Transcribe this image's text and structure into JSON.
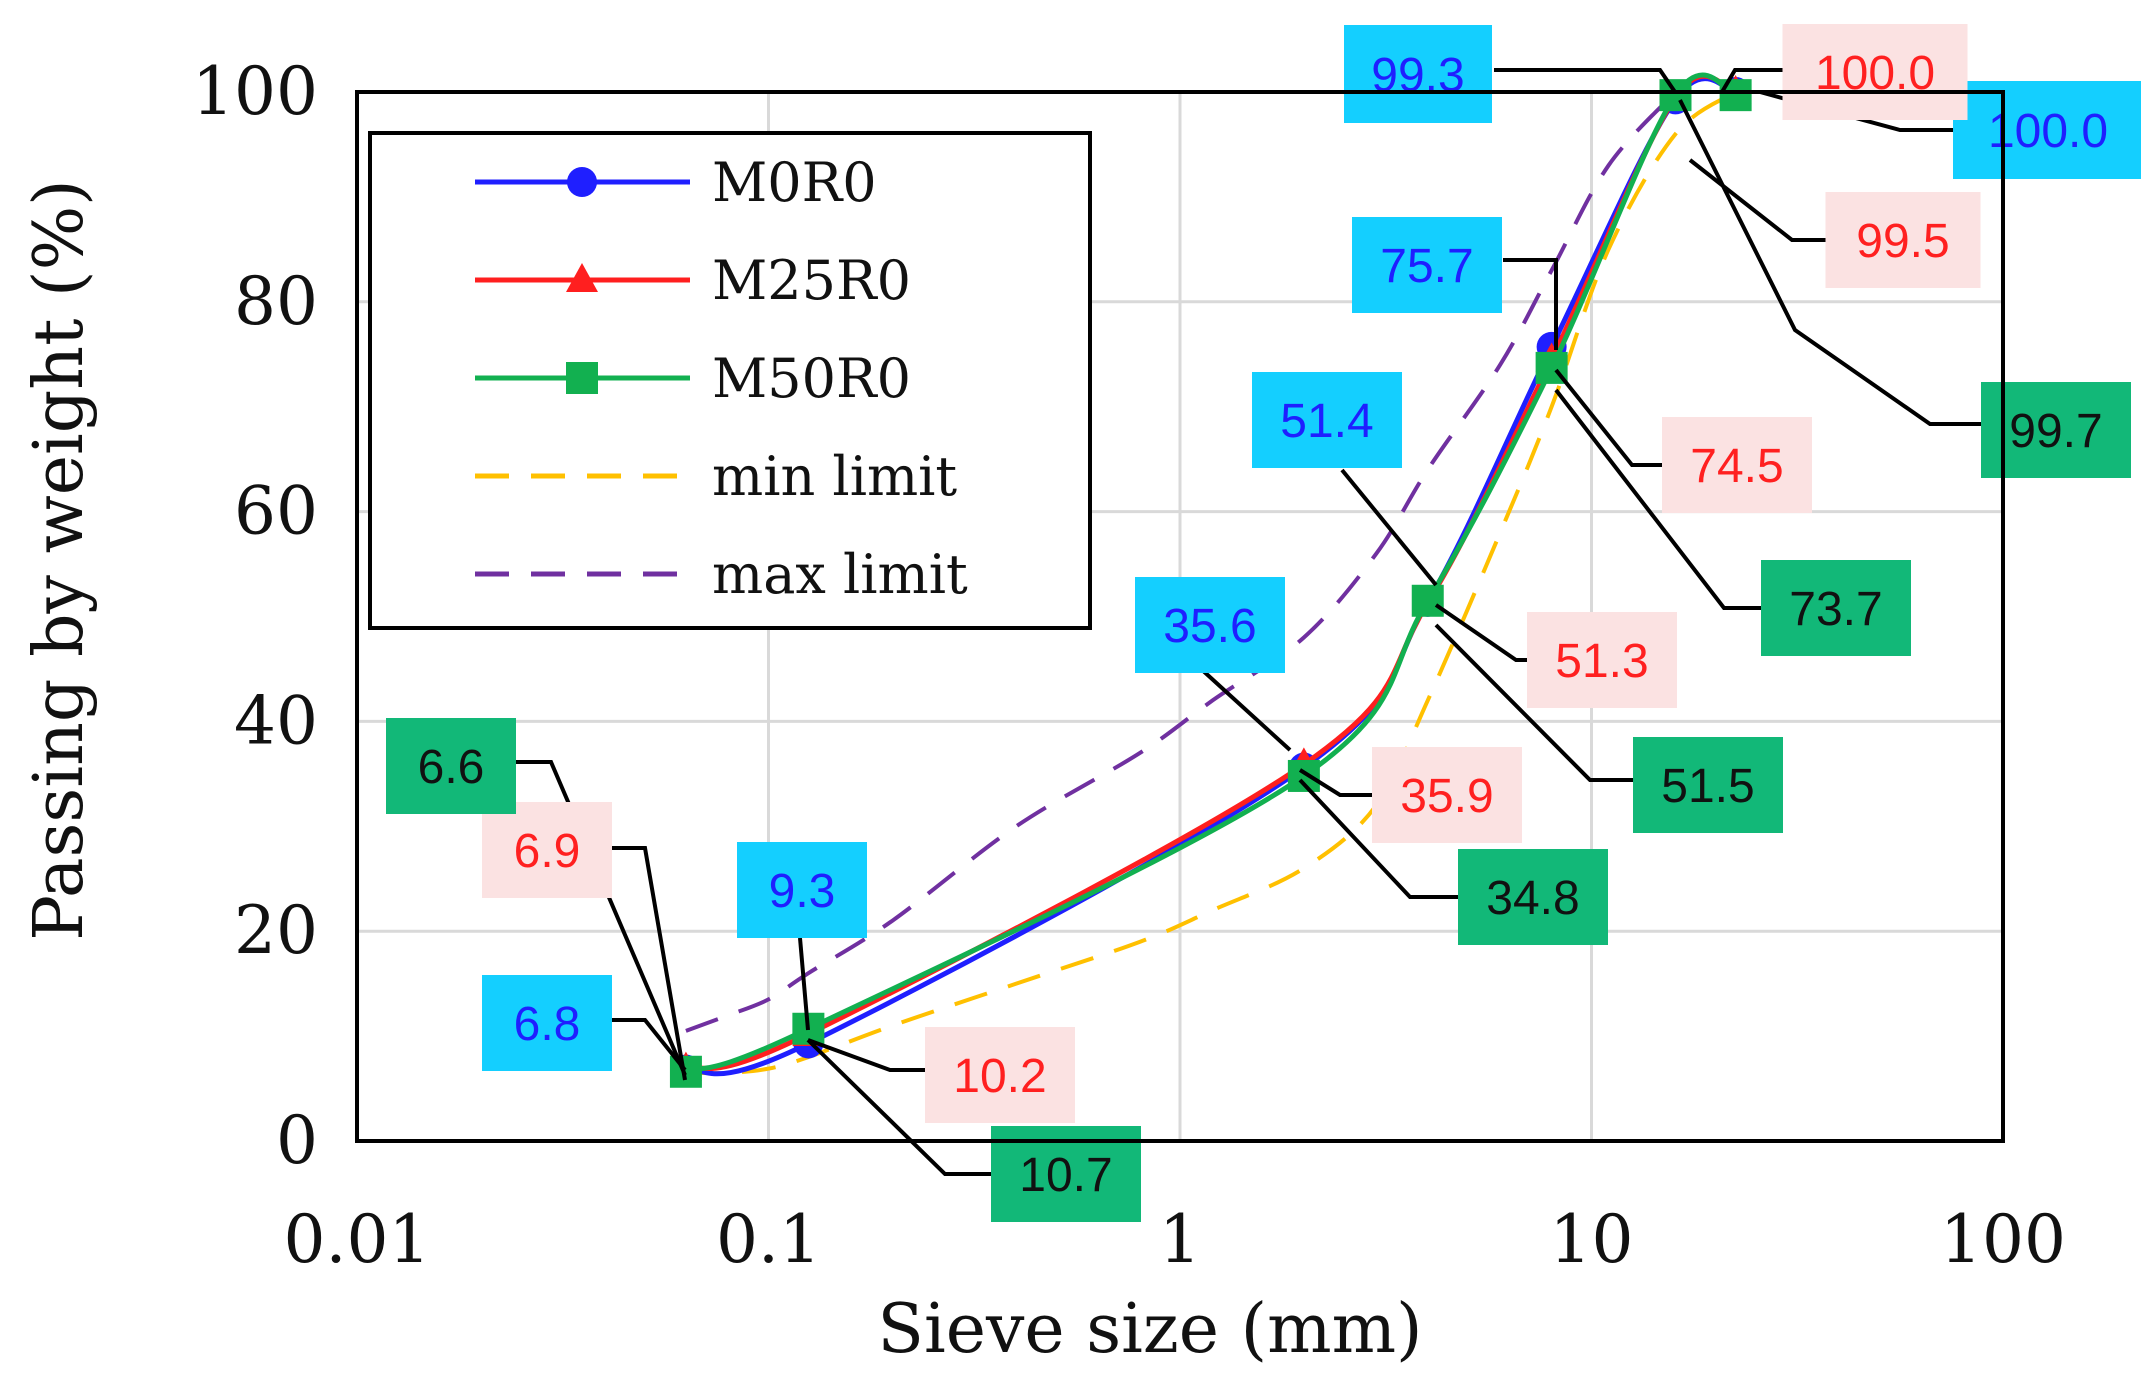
{
  "chart_data": {
    "type": "line",
    "title": "",
    "xlabel": "Sieve size (mm)",
    "ylabel": "Passing by weight (%)",
    "xscale": "log",
    "xlim": [
      0.01,
      100
    ],
    "ylim": [
      0,
      100
    ],
    "x_ticks": [
      0.01,
      0.1,
      1,
      10,
      100
    ],
    "x_tick_labels": [
      "0.01",
      "0.1",
      "1",
      "10",
      "100"
    ],
    "y_ticks": [
      0,
      20,
      40,
      60,
      80,
      100
    ],
    "y_tick_labels": [
      "0",
      "20",
      "40",
      "60",
      "80",
      "100"
    ],
    "grid": true,
    "legend_position": "top-left",
    "x": [
      0.063,
      0.125,
      2,
      4,
      8,
      16,
      22.4
    ],
    "series": [
      {
        "name": "M0R0",
        "color": "#1f1fff",
        "marker": "circle",
        "values": [
          6.8,
          9.3,
          35.6,
          51.4,
          75.7,
          99.3,
          100.0
        ]
      },
      {
        "name": "M25R0",
        "color": "#ff1f1f",
        "marker": "triangle",
        "values": [
          6.9,
          10.2,
          35.9,
          51.3,
          74.5,
          99.5,
          100.0
        ]
      },
      {
        "name": "M50R0",
        "color": "#12b050",
        "marker": "square",
        "values": [
          6.6,
          10.7,
          34.8,
          51.5,
          73.7,
          99.7,
          99.7
        ]
      },
      {
        "name": "min limit",
        "color": "#ffc000",
        "dashed": true,
        "x": [
          0.063,
          0.08,
          0.1,
          0.125,
          0.2,
          0.4,
          0.8,
          1.2,
          2,
          3,
          4,
          6,
          8,
          11,
          16,
          22.4
        ],
        "values": [
          6.5,
          6.5,
          6.9,
          8,
          11,
          15,
          19,
          22,
          26,
          32,
          42,
          58,
          70,
          85,
          96,
          100
        ]
      },
      {
        "name": "max limit",
        "color": "#7030a0",
        "dashed": true,
        "x": [
          0.063,
          0.08,
          0.1,
          0.125,
          0.2,
          0.4,
          0.8,
          1.2,
          2,
          3,
          4,
          6,
          8,
          11,
          16
        ],
        "values": [
          10.5,
          12,
          13.5,
          16,
          21,
          30,
          37,
          42,
          48,
          56,
          64,
          74,
          83,
          93,
          100
        ]
      }
    ],
    "data_labels": [
      {
        "text": "99.3",
        "series": "M0R0",
        "color": "#1f1fff",
        "bg": "#14cfff"
      },
      {
        "text": "100.0",
        "series": "M0R0",
        "color": "#1f1fff",
        "bg": "#14cfff"
      },
      {
        "text": "75.7",
        "series": "M0R0",
        "color": "#1f1fff",
        "bg": "#14cfff"
      },
      {
        "text": "51.4",
        "series": "M0R0",
        "color": "#1f1fff",
        "bg": "#14cfff"
      },
      {
        "text": "35.6",
        "series": "M0R0",
        "color": "#1f1fff",
        "bg": "#14cfff"
      },
      {
        "text": "9.3",
        "series": "M0R0",
        "color": "#1f1fff",
        "bg": "#14cfff"
      },
      {
        "text": "6.8",
        "series": "M0R0",
        "color": "#1f1fff",
        "bg": "#14cfff"
      },
      {
        "text": "100.0",
        "series": "M25R0",
        "color": "#ff2020",
        "bg": "#fbe2e2"
      },
      {
        "text": "99.5",
        "series": "M25R0",
        "color": "#ff2020",
        "bg": "#fbe2e2"
      },
      {
        "text": "74.5",
        "series": "M25R0",
        "color": "#ff2020",
        "bg": "#fbe2e2"
      },
      {
        "text": "51.3",
        "series": "M25R0",
        "color": "#ff2020",
        "bg": "#fbe2e2"
      },
      {
        "text": "35.9",
        "series": "M25R0",
        "color": "#ff2020",
        "bg": "#fbe2e2"
      },
      {
        "text": "10.2",
        "series": "M25R0",
        "color": "#ff2020",
        "bg": "#fbe2e2"
      },
      {
        "text": "6.9",
        "series": "M25R0",
        "color": "#ff2020",
        "bg": "#fbe2e2"
      },
      {
        "text": "99.7",
        "series": "M50R0",
        "color": "#111111",
        "bg": "#12b878"
      },
      {
        "text": "73.7",
        "series": "M50R0",
        "color": "#111111",
        "bg": "#12b878"
      },
      {
        "text": "51.5",
        "series": "M50R0",
        "color": "#111111",
        "bg": "#12b878"
      },
      {
        "text": "34.8",
        "series": "M50R0",
        "color": "#111111",
        "bg": "#12b878"
      },
      {
        "text": "10.7",
        "series": "M50R0",
        "color": "#111111",
        "bg": "#12b878"
      },
      {
        "text": "6.6",
        "series": "M50R0",
        "color": "#111111",
        "bg": "#12b878"
      }
    ]
  }
}
